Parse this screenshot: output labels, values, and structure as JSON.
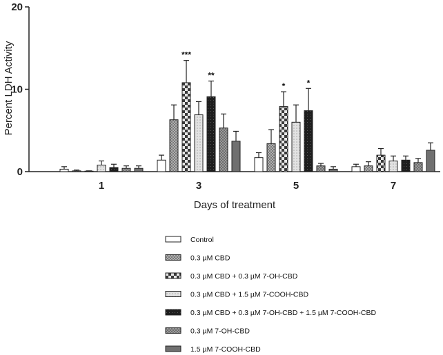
{
  "chart_data": {
    "type": "bar",
    "title": "",
    "xlabel": "Days of treatment",
    "ylabel": "Percent LDH Activity",
    "ylim": [
      0,
      20
    ],
    "yticks": [
      "0",
      "10",
      "20"
    ],
    "categories": [
      "1",
      "3",
      "5",
      "7"
    ],
    "series": [
      {
        "name": "Control",
        "color": "#ffffff",
        "values": [
          0.3,
          1.4,
          1.7,
          0.6
        ],
        "errors": [
          0.3,
          0.6,
          0.6,
          0.3
        ],
        "sig": [
          "",
          "",
          "",
          ""
        ]
      },
      {
        "name": "0.3 µM CBD",
        "color": "#9a9a9a",
        "values": [
          0.1,
          6.3,
          3.4,
          0.7
        ],
        "errors": [
          0.1,
          1.8,
          1.7,
          0.5
        ],
        "sig": [
          "",
          "",
          "",
          ""
        ]
      },
      {
        "name": "0.3 µM CBD + 0.3 µM 7-OH-CBD",
        "color": "#555555",
        "values": [
          0.05,
          10.8,
          7.9,
          2.0
        ],
        "errors": [
          0.05,
          2.7,
          1.8,
          0.8
        ],
        "sig": [
          "",
          "***",
          "*",
          ""
        ]
      },
      {
        "name": "0.3 µM CBD + 1.5 µM 7-COOH-CBD",
        "color": "#d6d6d6",
        "values": [
          0.8,
          6.9,
          6.0,
          1.3
        ],
        "errors": [
          0.5,
          1.6,
          2.1,
          0.6
        ],
        "sig": [
          "",
          "",
          "",
          ""
        ]
      },
      {
        "name": "0.3 µM CBD + 0.3 µM 7-OH-CBD + 1.5 µM 7-COOH-CBD",
        "color": "#222222",
        "values": [
          0.5,
          9.1,
          7.4,
          1.4
        ],
        "errors": [
          0.4,
          1.9,
          2.7,
          0.5
        ],
        "sig": [
          "",
          "**",
          "*",
          ""
        ]
      },
      {
        "name": "0.3 µM 7-OH-CBD",
        "color": "#8c8c8c",
        "values": [
          0.4,
          5.3,
          0.7,
          1.1
        ],
        "errors": [
          0.3,
          1.7,
          0.3,
          0.5
        ],
        "sig": [
          "",
          "",
          "",
          ""
        ]
      },
      {
        "name": "1.5 µM 7-COOH-CBD",
        "color": "#6e6e6e",
        "values": [
          0.4,
          3.7,
          0.3,
          2.6
        ],
        "errors": [
          0.3,
          1.2,
          0.3,
          0.9
        ],
        "sig": [
          "",
          "",
          "",
          ""
        ]
      }
    ]
  }
}
